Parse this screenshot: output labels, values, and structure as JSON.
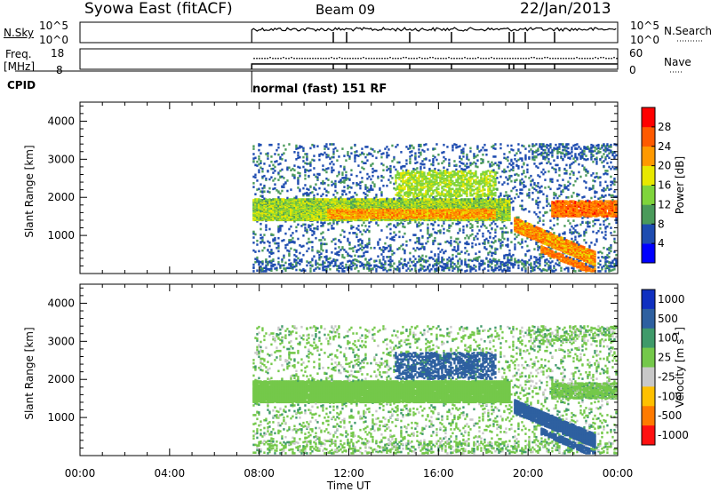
{
  "header": {
    "station": "Syowa East (fitACF)",
    "beam": "Beam 09",
    "date": "22/Jan/2013"
  },
  "noise_panel": {
    "left_label": "N.Sky",
    "right_label": "N.Search",
    "left_ticks": [
      "10^5",
      "10^0"
    ],
    "right_ticks": [
      "10^5",
      "10^0"
    ]
  },
  "freq_panel": {
    "left_label_line1": "Freq.",
    "left_label_line2": "[MHz]",
    "left_ticks": [
      "18",
      "8"
    ],
    "right_label": "Nave",
    "right_ticks": [
      "60",
      "0"
    ]
  },
  "cpid": {
    "label": "CPID",
    "mode_text": "normal (fast) 151 RF"
  },
  "x_axis": {
    "label": "Time UT",
    "ticks": [
      "00:00",
      "04:00",
      "08:00",
      "12:00",
      "16:00",
      "20:00",
      "00:00"
    ]
  },
  "colors": {
    "power_scale": [
      "#0000ff",
      "#1e4cb0",
      "#4a9a5a",
      "#7fd43b",
      "#e8e800",
      "#ff9900",
      "#ff5a00",
      "#ff0000"
    ],
    "velocity_scale": [
      "#1030c0",
      "#2e60a0",
      "#3f9a6a",
      "#74c84a",
      "#c8c8c8",
      "#ffc000",
      "#ff7a00",
      "#ff1010"
    ]
  },
  "chart_data": [
    {
      "type": "heatmap",
      "title": "Power",
      "ylabel": "Slant Range [km]",
      "yticks": [
        "1000",
        "2000",
        "3000",
        "4000"
      ],
      "ylim": [
        0,
        4500
      ],
      "xlim": [
        "00:00",
        "24:00"
      ],
      "data_start": "07:40",
      "colorbar": {
        "label": "Power [dB]",
        "ticks": [
          "4",
          "8",
          "12",
          "16",
          "20",
          "24",
          "28"
        ],
        "range": [
          0,
          32
        ]
      },
      "features": [
        {
          "from": "07:40",
          "to": "19:00",
          "range_km": [
            1450,
            1900
          ],
          "power_db": [
            14,
            24
          ]
        },
        {
          "from": "11:00",
          "to": "18:00",
          "range_km": [
            1450,
            1700
          ],
          "power_db": [
            20,
            26
          ]
        },
        {
          "from": "19:30",
          "to": "23:00",
          "range_km": [
            600,
            1200
          ],
          "power_db": [
            18,
            26
          ]
        },
        {
          "from": "21:00",
          "to": "24:00",
          "range_km": [
            1500,
            1900
          ],
          "power_db": [
            20,
            28
          ]
        }
      ]
    },
    {
      "type": "heatmap",
      "title": "Velocity",
      "ylabel": "Slant Range [km]",
      "yticks": [
        "1000",
        "2000",
        "3000",
        "4000"
      ],
      "ylim": [
        0,
        4500
      ],
      "xlim": [
        "00:00",
        "24:00"
      ],
      "data_start": "07:40",
      "colorbar": {
        "label": "Velocity [m s^-1]",
        "ticks": [
          "1000",
          "500",
          "100",
          "25",
          "-25",
          "-100",
          "-500",
          "-1000"
        ]
      },
      "features": [
        {
          "from": "07:40",
          "to": "19:00",
          "range_km": [
            1450,
            1900
          ],
          "velocity": [
            -25,
            25
          ]
        },
        {
          "from": "19:30",
          "to": "23:00",
          "range_km": [
            600,
            1200
          ],
          "velocity": [
            100,
            500
          ]
        }
      ]
    }
  ]
}
